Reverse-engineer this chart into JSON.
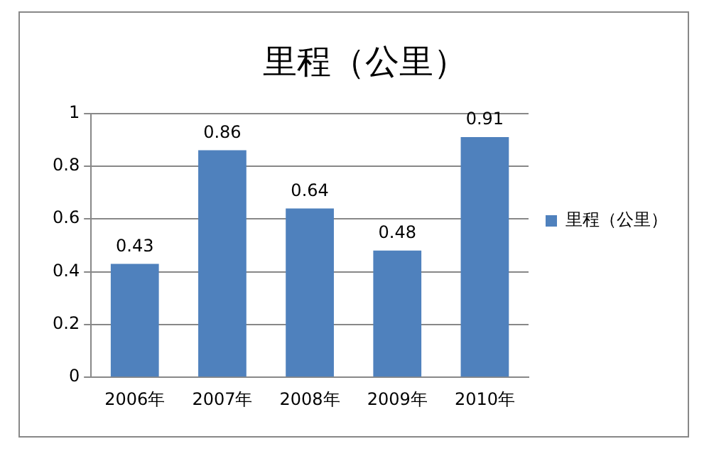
{
  "chart_data": {
    "type": "bar",
    "title": "里程（公里）",
    "categories": [
      "2006年",
      "2007年",
      "2008年",
      "2009年",
      "2010年"
    ],
    "series": [
      {
        "name": "里程（公里）",
        "color": "#4f81bd",
        "values": [
          0.43,
          0.86,
          0.64,
          0.48,
          0.91
        ]
      }
    ],
    "ylim": [
      0,
      1
    ],
    "yticks": [
      0,
      0.2,
      0.4,
      0.6,
      0.8,
      1
    ],
    "grid": "y",
    "legend": "right",
    "data_labels": true
  }
}
